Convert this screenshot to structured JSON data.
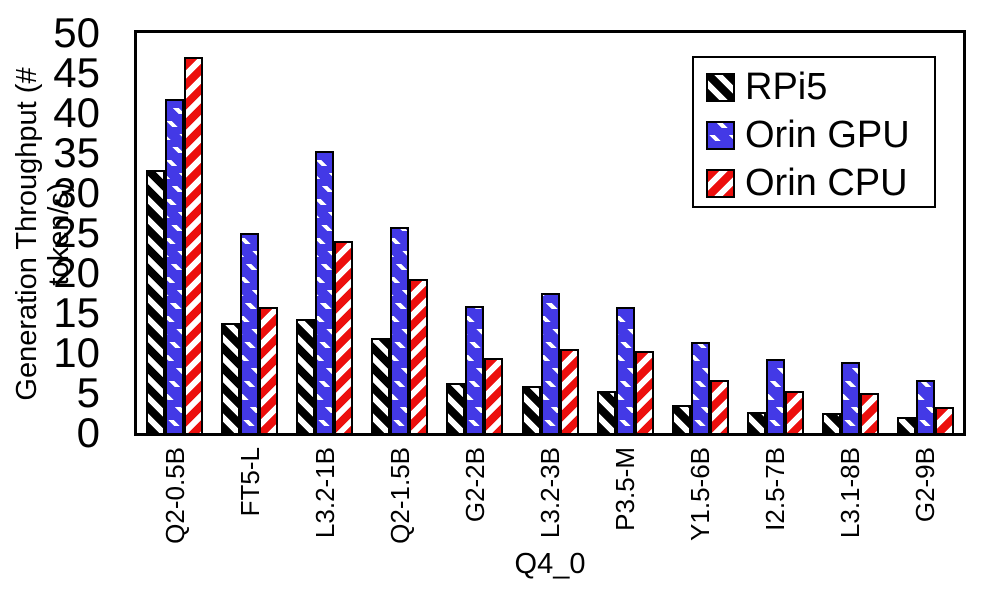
{
  "chart_data": {
    "type": "bar",
    "title": "",
    "xlabel": "Q4_0",
    "ylabel": "Generation Throughput (# token/s)",
    "ylim": [
      0,
      50
    ],
    "yticks": [
      0,
      5,
      10,
      15,
      20,
      25,
      30,
      35,
      40,
      45,
      50
    ],
    "grid": false,
    "legend_position": "top-right",
    "categories": [
      "Q2-0.5B",
      "FT5-L",
      "L3.2-1B",
      "Q2-1.5B",
      "G2-2B",
      "L3.2-3B",
      "P3.5-M",
      "Y1.5-6B",
      "I2.5-7B",
      "L3.1-8B",
      "G2-9B"
    ],
    "series": [
      {
        "name": "RPi5",
        "color": "#000000",
        "pattern": "white-diagonal-stripes-down",
        "values": [
          32.9,
          13.7,
          14.2,
          11.9,
          6.2,
          5.9,
          5.2,
          3.5,
          2.6,
          2.5,
          2.0
        ]
      },
      {
        "name": "Orin GPU",
        "color": "#4339e6",
        "pattern": "white-diagonal-dashes-down",
        "values": [
          41.7,
          25.0,
          35.3,
          25.8,
          15.9,
          17.5,
          15.7,
          11.4,
          9.2,
          8.9,
          6.6
        ]
      },
      {
        "name": "Orin CPU",
        "color": "#ec0f0d",
        "pattern": "white-diagonal-stripes-up",
        "values": [
          47.0,
          15.8,
          24.0,
          19.2,
          9.4,
          10.5,
          10.3,
          6.6,
          5.3,
          5.0,
          3.3
        ]
      }
    ]
  }
}
